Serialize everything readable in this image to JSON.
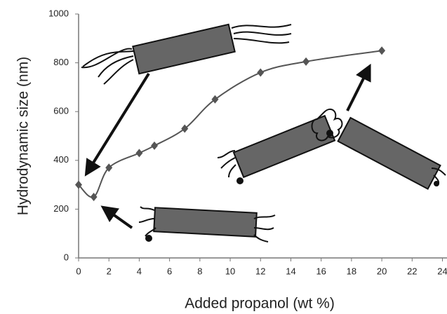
{
  "chart_data": {
    "type": "line",
    "x_label": "Added propanol (wt %)",
    "y_label": "Hydrodynamic size (nm)",
    "x": [
      0,
      1,
      2,
      4,
      5,
      7,
      9,
      12,
      15,
      20
    ],
    "series": [
      {
        "color": "#555555",
        "values": [
          300,
          250,
          370,
          430,
          460,
          530,
          650,
          760,
          805,
          850
        ]
      }
    ],
    "xlim": [
      0,
      24.3
    ],
    "ylim": [
      0,
      1000
    ],
    "xticks": [
      0,
      2,
      4,
      6,
      8,
      10,
      12,
      14,
      16,
      18,
      20,
      22,
      24
    ],
    "yticks": [
      0,
      200,
      400,
      600,
      800,
      1000
    ],
    "grid": false
  }
}
